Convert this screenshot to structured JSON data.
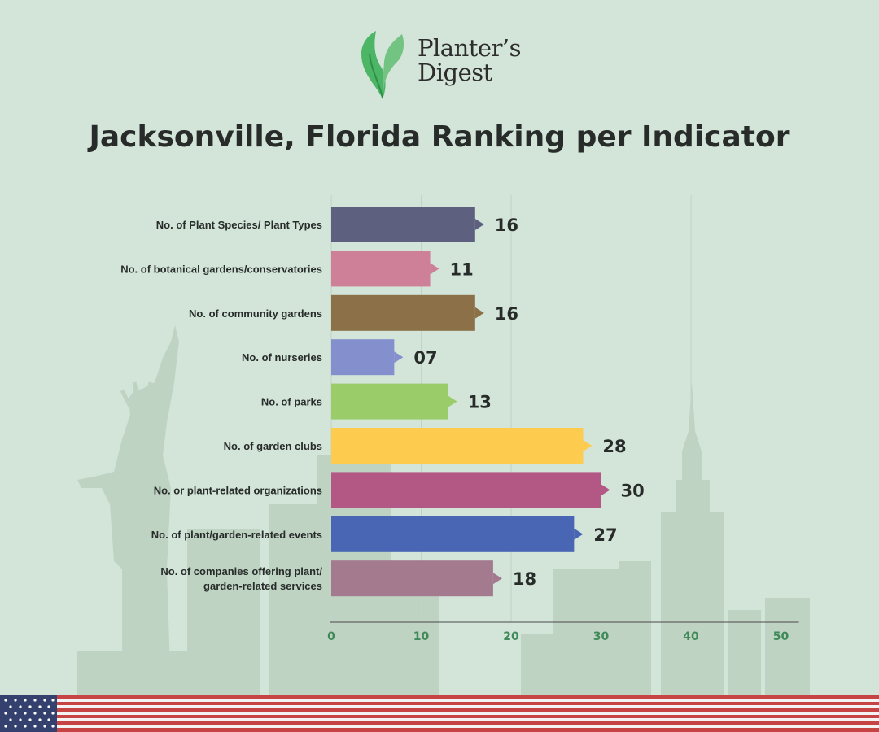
{
  "brand": {
    "name_line1": "Planter’s",
    "name_line2": "Digest"
  },
  "page_title": "Jacksonville, Florida Ranking per Indicator",
  "colors": {
    "background": "#d3e4d9",
    "axis_tick_label": "#3f8a58",
    "text_dark": "#272c2a",
    "brand_green": "#4cb566"
  },
  "chart_data": {
    "type": "bar",
    "orientation": "horizontal",
    "title": "Jacksonville, Florida Ranking per Indicator",
    "xlabel": "",
    "ylabel": "",
    "xlim": [
      0,
      52
    ],
    "x_ticks": [
      0,
      10,
      20,
      30,
      40,
      50
    ],
    "grid": true,
    "categories": [
      "No. of Plant Species/ Plant Types",
      "No. of botanical gardens/conservatories",
      "No. of community gardens",
      "No. of nurseries",
      "No. of parks",
      "No. of garden clubs",
      "No. or plant-related organizations",
      "No. of plant/garden-related events",
      "No. of companies offering plant/ garden-related services"
    ],
    "category_lines": [
      [
        "No. of Plant Species/ Plant Types"
      ],
      [
        "No. of botanical gardens/conservatories"
      ],
      [
        "No. of community gardens"
      ],
      [
        "No. of nurseries"
      ],
      [
        "No. of parks"
      ],
      [
        "No. of garden clubs"
      ],
      [
        "No. or plant-related organizations"
      ],
      [
        "No. of plant/garden-related events"
      ],
      [
        "No. of companies offering plant/",
        "garden-related services"
      ]
    ],
    "values": [
      16,
      11,
      16,
      7,
      13,
      28,
      30,
      27,
      18
    ],
    "value_labels": [
      "16",
      "11",
      "16",
      "07",
      "13",
      "28",
      "30",
      "27",
      "18"
    ],
    "bar_colors": [
      "#5d607f",
      "#cd8098",
      "#8b7048",
      "#8490cd",
      "#9acd69",
      "#fdcb4e",
      "#b35784",
      "#4866b4",
      "#a47a8f"
    ]
  }
}
